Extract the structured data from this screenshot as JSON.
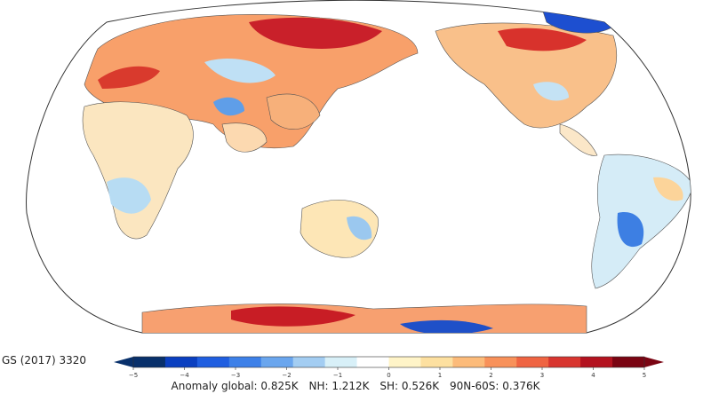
{
  "run_label": "GS (2017) 3320",
  "colorbar": {
    "ticks": [
      "−5",
      "−4",
      "−3",
      "−2",
      "−1",
      "0",
      "1",
      "2",
      "3",
      "4",
      "5"
    ],
    "colors": [
      "#08306b",
      "#0a3fc0",
      "#1f5ee0",
      "#3d80e8",
      "#6aa6ee",
      "#a3cdf2",
      "#d8f0f8",
      "#ffffff",
      "#fff4c8",
      "#fde0a0",
      "#fcbb7a",
      "#f8915a",
      "#ef6442",
      "#d8352f",
      "#b3121f",
      "#7a0412"
    ]
  },
  "anomaly": {
    "global": "Anomaly global: 0.825K",
    "nh": "NH: 1.212K",
    "sh": "SH: 0.526K",
    "band": "90N-60S: 0.376K"
  }
}
